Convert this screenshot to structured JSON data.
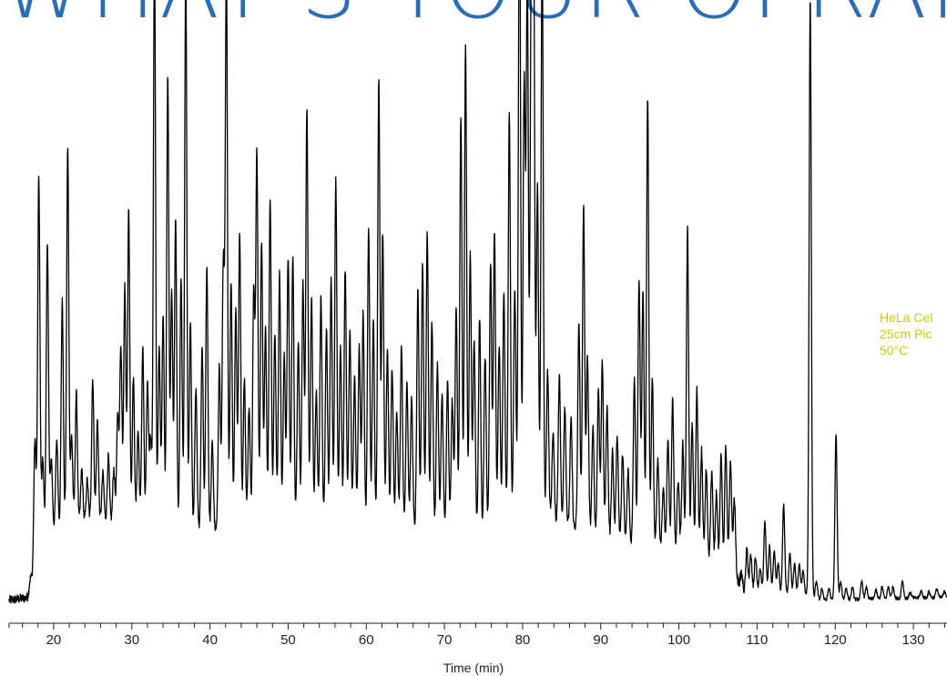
{
  "headline": "WHAT'S YOUR OFRAP DNA?",
  "annotation_lines": [
    "HeLa Cel",
    "25cm Pic",
    "50°C"
  ],
  "colors": {
    "headline": "#2a6db5",
    "annotation": "#c8c81e",
    "trace": "#000000",
    "axis": "#222222"
  },
  "chart_data": {
    "type": "line",
    "title": "",
    "xlabel": "Time (min)",
    "ylabel": "",
    "xlim": [
      14.3,
      134.3
    ],
    "ylim": [
      0,
      100
    ],
    "xticks_major": [
      20,
      30,
      40,
      50,
      60,
      70,
      80,
      90,
      100,
      110,
      120,
      130
    ],
    "x_minor_tick_step": 2,
    "grid": false,
    "legend": "none",
    "baseline": [
      [
        14.3,
        0.5
      ],
      [
        17,
        1
      ],
      [
        18,
        12
      ],
      [
        25,
        14
      ],
      [
        40,
        12
      ],
      [
        50,
        14
      ],
      [
        60,
        13
      ],
      [
        75,
        12
      ],
      [
        80,
        16
      ],
      [
        90,
        11
      ],
      [
        100,
        9
      ],
      [
        107,
        6
      ],
      [
        108,
        2
      ],
      [
        116,
        1.5
      ],
      [
        118,
        0.5
      ],
      [
        134.3,
        1
      ]
    ],
    "peaks": [
      [
        17.0,
        3
      ],
      [
        17.6,
        20
      ],
      [
        18.1,
        60
      ],
      [
        18.6,
        12
      ],
      [
        19.2,
        49
      ],
      [
        19.7,
        12
      ],
      [
        20.4,
        15
      ],
      [
        21.1,
        38
      ],
      [
        21.8,
        64
      ],
      [
        22.3,
        15
      ],
      [
        22.9,
        22
      ],
      [
        23.6,
        9
      ],
      [
        24.3,
        7
      ],
      [
        25.0,
        24
      ],
      [
        25.6,
        17
      ],
      [
        26.3,
        8
      ],
      [
        27.0,
        11
      ],
      [
        27.7,
        9
      ],
      [
        28.2,
        18
      ],
      [
        28.6,
        30
      ],
      [
        29.1,
        40
      ],
      [
        29.6,
        53
      ],
      [
        30.2,
        25
      ],
      [
        30.8,
        16
      ],
      [
        31.4,
        30
      ],
      [
        32.0,
        24
      ],
      [
        32.4,
        15
      ],
      [
        32.9,
        98
      ],
      [
        33.5,
        30
      ],
      [
        34.0,
        36
      ],
      [
        34.6,
        76
      ],
      [
        35.1,
        40
      ],
      [
        35.6,
        52
      ],
      [
        36.3,
        42
      ],
      [
        36.9,
        95
      ],
      [
        37.5,
        35
      ],
      [
        38.2,
        24
      ],
      [
        39.0,
        31
      ],
      [
        39.6,
        45
      ],
      [
        40.3,
        15
      ],
      [
        41.2,
        28
      ],
      [
        41.7,
        45
      ],
      [
        42.1,
        95
      ],
      [
        42.7,
        42
      ],
      [
        43.3,
        37
      ],
      [
        43.8,
        50
      ],
      [
        44.4,
        25
      ],
      [
        45.0,
        20
      ],
      [
        45.6,
        40
      ],
      [
        46.0,
        63
      ],
      [
        46.6,
        48
      ],
      [
        47.1,
        33
      ],
      [
        47.7,
        55
      ],
      [
        48.3,
        32
      ],
      [
        48.9,
        42
      ],
      [
        49.5,
        28
      ],
      [
        50.0,
        45
      ],
      [
        50.6,
        45
      ],
      [
        51.3,
        30
      ],
      [
        51.9,
        40
      ],
      [
        52.4,
        70
      ],
      [
        53.0,
        38
      ],
      [
        53.6,
        22
      ],
      [
        54.2,
        38
      ],
      [
        54.9,
        33
      ],
      [
        55.5,
        41
      ],
      [
        56.1,
        58
      ],
      [
        56.7,
        30
      ],
      [
        57.3,
        43
      ],
      [
        57.9,
        33
      ],
      [
        58.5,
        25
      ],
      [
        59.1,
        30
      ],
      [
        59.6,
        36
      ],
      [
        60.3,
        51
      ],
      [
        60.9,
        35
      ],
      [
        61.6,
        76
      ],
      [
        62.1,
        50
      ],
      [
        62.7,
        30
      ],
      [
        63.3,
        27
      ],
      [
        63.9,
        20
      ],
      [
        64.5,
        31
      ],
      [
        65.2,
        25
      ],
      [
        65.8,
        22
      ],
      [
        66.6,
        40
      ],
      [
        67.2,
        45
      ],
      [
        67.8,
        50
      ],
      [
        68.4,
        35
      ],
      [
        69.1,
        28
      ],
      [
        69.7,
        23
      ],
      [
        70.4,
        25
      ],
      [
        71.0,
        22
      ],
      [
        71.5,
        38
      ],
      [
        72.1,
        70
      ],
      [
        72.7,
        82
      ],
      [
        73.3,
        47
      ],
      [
        73.8,
        32
      ],
      [
        74.5,
        36
      ],
      [
        75.2,
        30
      ],
      [
        75.9,
        45
      ],
      [
        76.4,
        50
      ],
      [
        77.0,
        30
      ],
      [
        77.6,
        38
      ],
      [
        78.3,
        68
      ],
      [
        79.0,
        38
      ],
      [
        79.6,
        110
      ],
      [
        80.2,
        72
      ],
      [
        80.6,
        90
      ],
      [
        81.1,
        84
      ],
      [
        81.4,
        100
      ],
      [
        81.9,
        55
      ],
      [
        82.5,
        97
      ],
      [
        83.2,
        25
      ],
      [
        83.9,
        15
      ],
      [
        84.7,
        25
      ],
      [
        85.4,
        20
      ],
      [
        86.2,
        18
      ],
      [
        87.2,
        35
      ],
      [
        87.8,
        55
      ],
      [
        88.3,
        30
      ],
      [
        89.0,
        18
      ],
      [
        89.7,
        25
      ],
      [
        90.2,
        30
      ],
      [
        90.8,
        22
      ],
      [
        91.5,
        15
      ],
      [
        92.1,
        18
      ],
      [
        92.8,
        15
      ],
      [
        93.5,
        12
      ],
      [
        94.3,
        28
      ],
      [
        94.9,
        45
      ],
      [
        95.4,
        43
      ],
      [
        96.0,
        76
      ],
      [
        96.6,
        28
      ],
      [
        97.3,
        15
      ],
      [
        98.0,
        10
      ],
      [
        98.6,
        18
      ],
      [
        99.2,
        25
      ],
      [
        99.9,
        12
      ],
      [
        100.5,
        18
      ],
      [
        101.1,
        55
      ],
      [
        101.7,
        22
      ],
      [
        102.3,
        28
      ],
      [
        102.9,
        18
      ],
      [
        103.5,
        15
      ],
      [
        104.2,
        15
      ],
      [
        104.8,
        12
      ],
      [
        105.4,
        18
      ],
      [
        106.0,
        20
      ],
      [
        106.6,
        18
      ],
      [
        107.1,
        12
      ],
      [
        108.0,
        3
      ],
      [
        108.7,
        7
      ],
      [
        109.2,
        6
      ],
      [
        109.8,
        6
      ],
      [
        110.4,
        4
      ],
      [
        111.0,
        12
      ],
      [
        111.6,
        8
      ],
      [
        112.2,
        7
      ],
      [
        112.7,
        5
      ],
      [
        113.4,
        15
      ],
      [
        114.2,
        7
      ],
      [
        114.8,
        5
      ],
      [
        115.4,
        5
      ],
      [
        115.9,
        4
      ],
      [
        116.8,
        101
      ],
      [
        117.6,
        3
      ],
      [
        118.3,
        2
      ],
      [
        119.2,
        2
      ],
      [
        120.1,
        28
      ],
      [
        120.7,
        3
      ],
      [
        121.4,
        2
      ],
      [
        122.2,
        2
      ],
      [
        123.4,
        3
      ],
      [
        124.0,
        2
      ],
      [
        125.2,
        1.5
      ],
      [
        126.0,
        2
      ],
      [
        126.8,
        2
      ],
      [
        127.4,
        2
      ],
      [
        128.6,
        3
      ],
      [
        129.6,
        1
      ],
      [
        131.0,
        1.2
      ],
      [
        132.0,
        1
      ],
      [
        133.0,
        1.5
      ],
      [
        134.0,
        1
      ]
    ]
  }
}
